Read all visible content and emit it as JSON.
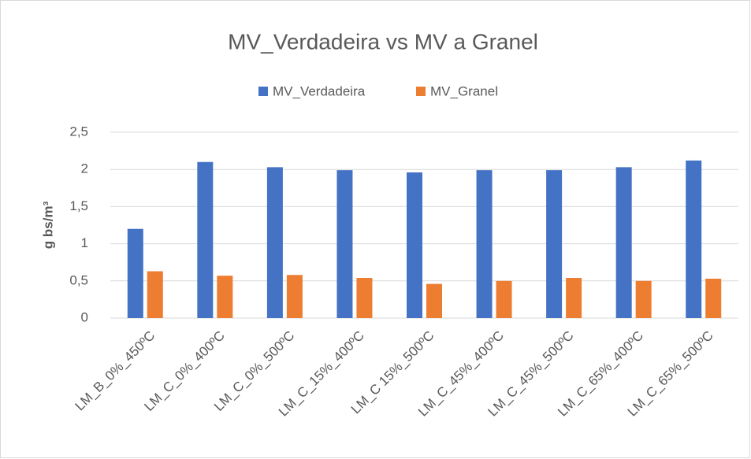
{
  "chart_data": {
    "type": "bar",
    "title": "MV_Verdadeira vs MV a Granel",
    "y_label": "g bs/m³",
    "categories": [
      "LM_B_0%_450ºC",
      "LM_C_0%_400ºC",
      "LM_C_0%_500ºC",
      "LM_C_15%_400ºC",
      "LM_C 15%_500ºC",
      "LM_C_45%_400ºC",
      "LM_C_45%_500ºC",
      "LM_C_65%_400ºC",
      "LM_C_65%_500ºC"
    ],
    "series": [
      {
        "name": "MV_Verdadeira",
        "color": "#4472c4",
        "values": [
          1.2,
          2.1,
          2.03,
          1.99,
          1.96,
          1.99,
          1.99,
          2.03,
          2.12
        ]
      },
      {
        "name": "MV_Granel",
        "color": "#ed7d31",
        "values": [
          0.63,
          0.57,
          0.58,
          0.54,
          0.46,
          0.5,
          0.54,
          0.5,
          0.53
        ]
      }
    ],
    "ylim": [
      0,
      2.5
    ],
    "yticks": [
      0,
      {
        "value": 0.5,
        "label": "0,5"
      },
      1,
      {
        "value": 1.5,
        "label": "1,5"
      },
      2,
      {
        "value": 2.5,
        "label": "2,5"
      }
    ],
    "grid": true,
    "legend": "top"
  }
}
